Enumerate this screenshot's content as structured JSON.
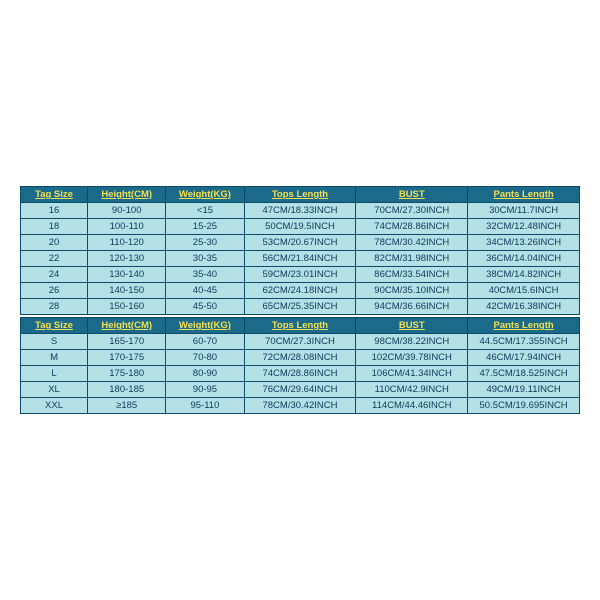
{
  "table1": {
    "columns": [
      "Tag Size",
      "Height(CM)",
      "Weight(KG)",
      "Tops Length",
      "BUST",
      "Pants Length"
    ],
    "rows": [
      [
        "16",
        "90-100",
        "<15",
        "47CM/18.33INCH",
        "70CM/27.30INCH",
        "30CM/11.7INCH"
      ],
      [
        "18",
        "100-110",
        "15-25",
        "50CM/19.5INCH",
        "74CM/28.86INCH",
        "32CM/12.48INCH"
      ],
      [
        "20",
        "110-120",
        "25-30",
        "53CM/20.67INCH",
        "78CM/30.42INCH",
        "34CM/13.26INCH"
      ],
      [
        "22",
        "120-130",
        "30-35",
        "56CM/21.84INCH",
        "82CM/31.98INCH",
        "36CM/14.04INCH"
      ],
      [
        "24",
        "130-140",
        "35-40",
        "59CM/23.01INCH",
        "86CM/33.54INCH",
        "38CM/14.82INCH"
      ],
      [
        "26",
        "140-150",
        "40-45",
        "62CM/24.18INCH",
        "90CM/35.10INCH",
        "40CM/15.6INCH"
      ],
      [
        "28",
        "150-160",
        "45-50",
        "65CM/25.35INCH",
        "94CM/36.66INCH",
        "42CM/16.38INCH"
      ]
    ]
  },
  "table2": {
    "columns": [
      "Tag Size",
      "Height(CM)",
      "Weight(KG)",
      "Tops Length",
      "BUST",
      "Pants Length"
    ],
    "rows": [
      [
        "S",
        "165-170",
        "60-70",
        "70CM/27.3INCH",
        "98CM/38.22INCH",
        "44.5CM/17.355INCH"
      ],
      [
        "M",
        "170-175",
        "70-80",
        "72CM/28.08INCH",
        "102CM/39.78INCH",
        "46CM/17.94INCH"
      ],
      [
        "L",
        "175-180",
        "80-90",
        "74CM/28.86INCH",
        "106CM/41.34INCH",
        "47.5CM/18.525INCH"
      ],
      [
        "XL",
        "180-185",
        "90-95",
        "76CM/29.64INCH",
        "110CM/42.9INCH",
        "49CM/19.11INCH"
      ],
      [
        "XXL",
        "≥185",
        "95-110",
        "78CM/30.42INCH",
        "114CM/44.46INCH",
        "50.5CM/19.695INCH"
      ]
    ]
  },
  "col_widths": [
    "12%",
    "14%",
    "14%",
    "20%",
    "20%",
    "20%"
  ],
  "header_bg": "#1b6a8a",
  "header_fg": "#f5e050",
  "cell_bg": "#b5e0e5",
  "cell_fg": "#0a3a5a",
  "border_color": "#0a4a6a"
}
